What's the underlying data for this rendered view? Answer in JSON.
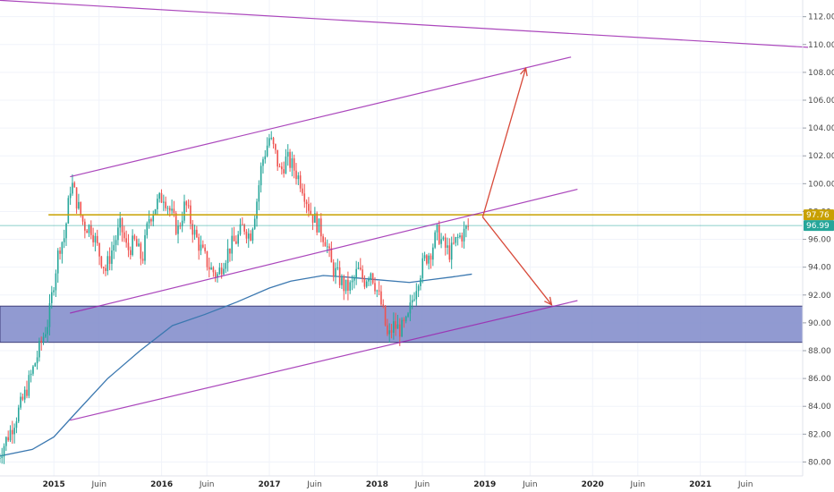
{
  "colors": {
    "background": "#ffffff",
    "grid": "#f0f3fa",
    "bull": "#26a69a",
    "bear": "#ef5350",
    "channel": "#9c27b0",
    "resistance": "#c8a000",
    "current_line": "#26a69a",
    "ma": "#3b78b0",
    "zone_fill": "#7e88c9",
    "zone_border": "#3f3f7a",
    "arrow": "#d84a3a",
    "axis_text": "#4a4a4a"
  },
  "chart_data": {
    "type": "candlestick",
    "instrument": "",
    "title": "",
    "ylim": [
      79,
      113.2
    ],
    "xlim": [
      2014.5,
      2021.95
    ],
    "y_ticks": [
      "80.00",
      "82.00",
      "84.00",
      "86.00",
      "88.00",
      "90.00",
      "92.00",
      "94.00",
      "96.00",
      "98.00",
      "100.00",
      "102.00",
      "104.00",
      "106.00",
      "108.00",
      "110.00",
      "112.00"
    ],
    "x_ticks": [
      {
        "label": "2015",
        "x": 2015.0,
        "year": true
      },
      {
        "label": "Juin",
        "x": 2015.42,
        "year": false
      },
      {
        "label": "2016",
        "x": 2016.0,
        "year": true
      },
      {
        "label": "Juin",
        "x": 2016.42,
        "year": false
      },
      {
        "label": "2017",
        "x": 2017.0,
        "year": true
      },
      {
        "label": "Juin",
        "x": 2017.42,
        "year": false
      },
      {
        "label": "2018",
        "x": 2018.0,
        "year": true
      },
      {
        "label": "Juin",
        "x": 2018.42,
        "year": false
      },
      {
        "label": "2019",
        "x": 2019.0,
        "year": true
      },
      {
        "label": "Juin",
        "x": 2019.42,
        "year": false
      },
      {
        "label": "2020",
        "x": 2020.0,
        "year": true
      },
      {
        "label": "Juin",
        "x": 2020.42,
        "year": false
      },
      {
        "label": "2021",
        "x": 2021.0,
        "year": true
      },
      {
        "label": "Juin",
        "x": 2021.42,
        "year": false
      }
    ],
    "price_path": [
      [
        2014.48,
        80.3
      ],
      [
        2014.6,
        82.3
      ],
      [
        2014.72,
        84.6
      ],
      [
        2014.8,
        86.5
      ],
      [
        2014.88,
        88.5
      ],
      [
        2014.95,
        90.2
      ],
      [
        2015.0,
        93.0
      ],
      [
        2015.05,
        95.5
      ],
      [
        2015.1,
        96.2
      ],
      [
        2015.16,
        100.2
      ],
      [
        2015.22,
        98.5
      ],
      [
        2015.28,
        97.0
      ],
      [
        2015.35,
        96.8
      ],
      [
        2015.42,
        95.0
      ],
      [
        2015.48,
        93.8
      ],
      [
        2015.55,
        95.5
      ],
      [
        2015.62,
        97.0
      ],
      [
        2015.68,
        95.2
      ],
      [
        2015.75,
        95.8
      ],
      [
        2015.82,
        94.5
      ],
      [
        2015.88,
        97.5
      ],
      [
        2015.95,
        98.5
      ],
      [
        2016.02,
        99.2
      ],
      [
        2016.08,
        98.0
      ],
      [
        2016.15,
        96.6
      ],
      [
        2016.22,
        98.6
      ],
      [
        2016.3,
        96.5
      ],
      [
        2016.38,
        95.0
      ],
      [
        2016.45,
        93.9
      ],
      [
        2016.52,
        93.4
      ],
      [
        2016.58,
        94.6
      ],
      [
        2016.64,
        95.5
      ],
      [
        2016.7,
        96.0
      ],
      [
        2016.76,
        97.0
      ],
      [
        2016.82,
        96.2
      ],
      [
        2016.88,
        98.6
      ],
      [
        2016.93,
        101.5
      ],
      [
        2017.0,
        103.3
      ],
      [
        2017.05,
        102.3
      ],
      [
        2017.1,
        100.8
      ],
      [
        2017.16,
        101.8
      ],
      [
        2017.22,
        101.2
      ],
      [
        2017.3,
        100.0
      ],
      [
        2017.38,
        98.0
      ],
      [
        2017.45,
        97.0
      ],
      [
        2017.52,
        96.0
      ],
      [
        2017.58,
        94.0
      ],
      [
        2017.64,
        93.3
      ],
      [
        2017.7,
        92.5
      ],
      [
        2017.76,
        92.6
      ],
      [
        2017.82,
        93.8
      ],
      [
        2017.88,
        93.0
      ],
      [
        2017.94,
        93.8
      ],
      [
        2018.0,
        92.3
      ],
      [
        2018.05,
        91.0
      ],
      [
        2018.1,
        88.8
      ],
      [
        2018.15,
        89.8
      ],
      [
        2018.22,
        89.5
      ],
      [
        2018.28,
        90.0
      ],
      [
        2018.32,
        91.5
      ],
      [
        2018.38,
        93.2
      ],
      [
        2018.44,
        94.5
      ],
      [
        2018.5,
        95.2
      ],
      [
        2018.56,
        96.5
      ],
      [
        2018.62,
        95.5
      ],
      [
        2018.68,
        95.0
      ],
      [
        2018.74,
        96.0
      ],
      [
        2018.8,
        96.4
      ],
      [
        2018.86,
        97.1
      ]
    ],
    "moving_average": [
      [
        2014.48,
        80.4
      ],
      [
        2014.8,
        80.9
      ],
      [
        2015.0,
        81.8
      ],
      [
        2015.2,
        83.5
      ],
      [
        2015.5,
        86.0
      ],
      [
        2015.8,
        88.0
      ],
      [
        2016.1,
        89.8
      ],
      [
        2016.4,
        90.6
      ],
      [
        2016.7,
        91.5
      ],
      [
        2017.0,
        92.5
      ],
      [
        2017.2,
        93.0
      ],
      [
        2017.5,
        93.4
      ],
      [
        2017.7,
        93.3
      ],
      [
        2018.0,
        93.1
      ],
      [
        2018.3,
        92.9
      ],
      [
        2018.5,
        93.1
      ],
      [
        2018.7,
        93.3
      ],
      [
        2018.88,
        93.5
      ]
    ],
    "channel_lines": [
      {
        "x1": 2015.15,
        "y1": 100.5,
        "x2": 2019.8,
        "y2": 109.1
      },
      {
        "x1": 2015.15,
        "y1": 90.7,
        "x2": 2019.86,
        "y2": 99.6
      },
      {
        "x1": 2015.15,
        "y1": 83.0,
        "x2": 2019.86,
        "y2": 91.6
      },
      {
        "x1": 2014.45,
        "y1": 113.2,
        "x2": 2022.0,
        "y2": 109.8
      }
    ],
    "resistance_level": 97.76,
    "current_price": 96.99,
    "resistance_label": "97.76",
    "current_label": "96.99",
    "support_zone": [
      88.6,
      91.2
    ],
    "arrows": [
      {
        "x1": 2018.98,
        "y1": 97.6,
        "x2": 2019.38,
        "y2": 108.3
      },
      {
        "x1": 2018.98,
        "y1": 97.6,
        "x2": 2019.62,
        "y2": 91.3
      }
    ]
  }
}
